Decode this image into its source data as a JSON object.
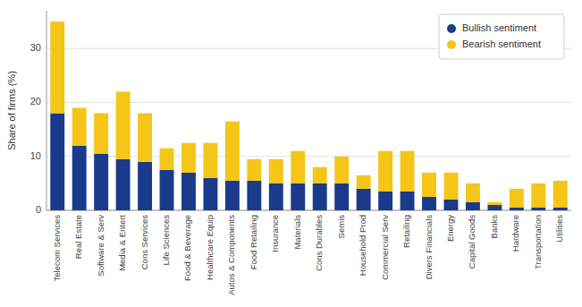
{
  "chart_data": {
    "type": "bar",
    "stacked": true,
    "categories": [
      "Telecom Services",
      "Real Estate",
      "Software & Serv",
      "Media & Entert",
      "Cons Services",
      "Life Sciences",
      "Food & Beverage",
      "Healthcare Equip",
      "Autos & Components",
      "Food Retailing",
      "Insurance",
      "Materials",
      "Cons Durables",
      "Semis",
      "Household Prod",
      "Commercial Serv",
      "Retailing",
      "Divers Financials",
      "Energy",
      "Capital Goods",
      "Banks",
      "Hardware",
      "Transportation",
      "Utilities"
    ],
    "series": [
      {
        "name": "Bullish sentiment",
        "color": "#1a3a8c",
        "values": [
          18.0,
          12.0,
          10.5,
          9.5,
          9.0,
          7.5,
          7.0,
          6.0,
          5.5,
          5.5,
          5.0,
          5.0,
          5.0,
          5.0,
          4.0,
          3.5,
          3.5,
          2.5,
          2.0,
          1.5,
          1.0,
          0.5,
          0.5,
          0.5
        ]
      },
      {
        "name": "Bearish sentiment",
        "color": "#f5c518",
        "values": [
          17.0,
          7.0,
          7.5,
          12.5,
          9.0,
          4.0,
          5.5,
          6.5,
          11.0,
          4.0,
          4.5,
          6.0,
          3.0,
          5.0,
          2.5,
          7.5,
          7.5,
          4.5,
          5.0,
          3.5,
          0.5,
          3.5,
          4.5,
          5.0
        ]
      }
    ],
    "ylabel": "Share of firms (%)",
    "ylim": [
      0,
      37
    ],
    "yticks": [
      0,
      10,
      20,
      30
    ],
    "grid": true,
    "legend": "upper right"
  }
}
